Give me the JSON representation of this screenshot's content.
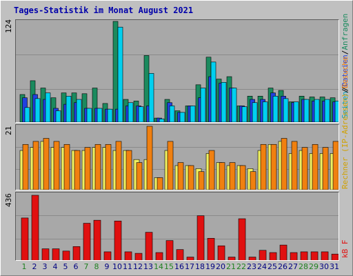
{
  "title": "Tages-Statistik im Monat August 2021",
  "colors": {
    "anfragen": "#1b8a5e",
    "dateien": "#2040e0",
    "seiten": "#00d0f0",
    "rechner": "#f0f060",
    "besuche": "#f08010",
    "kb": "#e01010",
    "weekend": "#208020",
    "weekday": "#000080"
  },
  "right_labels": {
    "top": [
      {
        "text": "Seiten",
        "color": "#00a0c0"
      },
      {
        "text": "/",
        "color": "#000000"
      },
      {
        "text": "Dateien",
        "color": "#2040e0"
      },
      {
        "text": "/",
        "color": "#000000"
      },
      {
        "text": "Anfragen",
        "color": "#1b8a5e"
      }
    ],
    "middle": [
      {
        "text": "Rechner (IP-Adressen)",
        "color": "#d0a000"
      },
      {
        "text": "/",
        "color": "#000000"
      },
      {
        "text": "Besuche",
        "color": "#f08010"
      }
    ],
    "bottom": [
      {
        "text": "kB F",
        "color": "#e01010"
      }
    ]
  },
  "chart_data": [
    {
      "type": "bar",
      "title": "Tages-Statistik im Monat August 2021",
      "ymax_label": "124",
      "ylim": [
        0,
        124
      ],
      "categories": [
        "1",
        "2",
        "3",
        "4",
        "5",
        "6",
        "7",
        "8",
        "9",
        "10",
        "11",
        "12",
        "13",
        "14",
        "15",
        "16",
        "17",
        "18",
        "19",
        "20",
        "21",
        "22",
        "23",
        "24",
        "25",
        "26",
        "27",
        "28",
        "29",
        "30",
        "31"
      ],
      "series": [
        {
          "name": "Anfragen",
          "values": [
            34,
            51,
            42,
            30,
            36,
            36,
            35,
            42,
            23,
            124,
            28,
            26,
            82,
            5,
            28,
            14,
            20,
            46,
            80,
            53,
            56,
            20,
            32,
            32,
            42,
            39,
            25,
            32,
            31,
            31,
            30
          ]
        },
        {
          "name": "Dateien",
          "values": [
            30,
            34,
            28,
            17,
            22,
            24,
            17,
            17,
            16,
            16,
            20,
            20,
            20,
            5,
            24,
            12,
            20,
            30,
            56,
            48,
            42,
            20,
            28,
            28,
            36,
            32,
            24,
            28,
            26,
            26,
            25
          ]
        },
        {
          "name": "Seiten",
          "values": [
            18,
            29,
            36,
            14,
            32,
            28,
            17,
            17,
            16,
            117,
            24,
            19,
            60,
            4,
            20,
            12,
            20,
            42,
            74,
            49,
            42,
            19,
            24,
            25,
            32,
            29,
            25,
            28,
            28,
            28,
            26
          ]
        }
      ]
    },
    {
      "type": "bar",
      "ymax_label": "21",
      "ylim": [
        0,
        21
      ],
      "categories": [
        "1",
        "2",
        "3",
        "4",
        "5",
        "6",
        "7",
        "8",
        "9",
        "10",
        "11",
        "12",
        "13",
        "14",
        "15",
        "16",
        "17",
        "18",
        "19",
        "20",
        "21",
        "22",
        "23",
        "24",
        "25",
        "26",
        "27",
        "28",
        "29",
        "30",
        "31"
      ],
      "series": [
        {
          "name": "Rechner (IP-Adressen)",
          "values": [
            13,
            14,
            16,
            14,
            14,
            13,
            13,
            14,
            14,
            13,
            13,
            10,
            10,
            4,
            13,
            8,
            8,
            7,
            12,
            9,
            8,
            8,
            7,
            13,
            15,
            16,
            12,
            13,
            12,
            12,
            12
          ]
        },
        {
          "name": "Besuche",
          "values": [
            15,
            16,
            17,
            16,
            15,
            13,
            14,
            15,
            15,
            16,
            13,
            9,
            21,
            4,
            16,
            9,
            8,
            6,
            13,
            9,
            9,
            8,
            6,
            15,
            15,
            17,
            16,
            14,
            15,
            14,
            16
          ]
        }
      ]
    },
    {
      "type": "bar",
      "ymax_label": "436",
      "ylim": [
        0,
        436
      ],
      "categories": [
        "1",
        "2",
        "3",
        "4",
        "5",
        "6",
        "7",
        "8",
        "9",
        "10",
        "11",
        "12",
        "13",
        "14",
        "15",
        "16",
        "17",
        "18",
        "19",
        "20",
        "21",
        "22",
        "23",
        "24",
        "25",
        "26",
        "27",
        "28",
        "29",
        "30",
        "31"
      ],
      "series": [
        {
          "name": "kB F",
          "values": [
            285,
            436,
            80,
            80,
            65,
            95,
            250,
            270,
            60,
            265,
            60,
            50,
            190,
            55,
            135,
            75,
            25,
            300,
            150,
            100,
            25,
            280,
            25,
            70,
            55,
            105,
            55,
            60,
            60,
            60,
            45
          ]
        }
      ]
    }
  ],
  "weekend_days": [
    "1",
    "7",
    "8",
    "14",
    "15",
    "21",
    "22",
    "28",
    "29"
  ]
}
